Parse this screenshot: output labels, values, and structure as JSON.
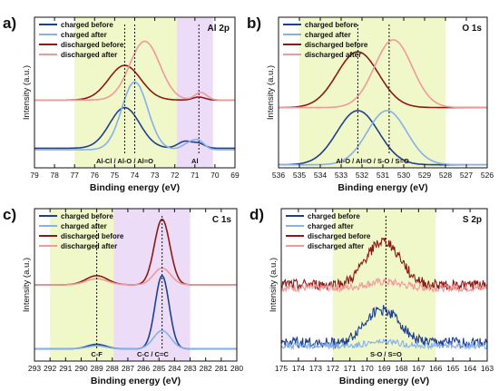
{
  "chart_data": [
    {
      "type": "line",
      "panel_label": "a)",
      "title": "Al 2p",
      "xlabel": "Binding energy (eV)",
      "ylabel": "Intensity (a.u.)",
      "xlim": [
        79,
        69
      ],
      "x_ticks": [
        79,
        78,
        77,
        76,
        75,
        74,
        73,
        72,
        71,
        70,
        69
      ],
      "y_ticks_shown": false,
      "legend_position": "top-left",
      "regions": [
        {
          "from": 77.0,
          "to": 71.9,
          "color": "#f0f7c8",
          "label": "Al-Cl / Al-O / Al=O",
          "label_at": 74.5
        },
        {
          "from": 71.9,
          "to": 70.1,
          "color": "#ecdcf7",
          "label": "Al",
          "label_at": 71.0
        }
      ],
      "dashed_lines": [
        74.5,
        74.0,
        70.8
      ],
      "series": [
        {
          "name": "charged before",
          "color": "#1f3f8f",
          "baseline": 0.13,
          "peaks": [
            [
              74.5,
              0.27,
              0.75
            ],
            [
              71.5,
              0.045,
              0.35
            ],
            [
              70.8,
              0.03,
              0.3
            ]
          ]
        },
        {
          "name": "charged after",
          "color": "#86b0ec",
          "baseline": 0.12,
          "peaks": [
            [
              74.0,
              0.45,
              0.65
            ],
            [
              71.3,
              0.04,
              0.35
            ],
            [
              70.8,
              0.05,
              0.3
            ]
          ]
        },
        {
          "name": "discharged before",
          "color": "#8b1a16",
          "baseline": 0.45,
          "peaks": [
            [
              74.5,
              0.23,
              0.8
            ],
            [
              70.8,
              0.02,
              0.3
            ]
          ]
        },
        {
          "name": "discharged after",
          "color": "#ef9a9a",
          "baseline": 0.45,
          "peaks": [
            [
              73.5,
              0.39,
              0.75
            ],
            [
              70.7,
              0.05,
              0.3
            ]
          ]
        }
      ]
    },
    {
      "type": "line",
      "panel_label": "b)",
      "title": "O 1s",
      "xlabel": "Binding energy (eV)",
      "ylabel": "Intensity (a.u.)",
      "xlim": [
        536,
        526
      ],
      "x_ticks": [
        536,
        535,
        534,
        533,
        532,
        531,
        530,
        529,
        528,
        527,
        526
      ],
      "y_ticks_shown": false,
      "legend_position": "top-left",
      "regions": [
        {
          "from": 535.0,
          "to": 528.0,
          "color": "#f0f7c8",
          "label": "Al-O / Al=O / S-O / S=O",
          "label_at": 531.5
        }
      ],
      "dashed_lines": [
        532.2,
        530.7
      ],
      "series": [
        {
          "name": "charged before",
          "color": "#1f3f8f",
          "baseline": 0.02,
          "peaks": [
            [
              532.2,
              0.36,
              1.0
            ]
          ]
        },
        {
          "name": "charged after",
          "color": "#86b0ec",
          "baseline": 0.02,
          "peaks": [
            [
              530.8,
              0.36,
              0.95
            ]
          ]
        },
        {
          "name": "discharged before",
          "color": "#8b1a16",
          "baseline": 0.4,
          "peaks": [
            [
              532.2,
              0.37,
              1.0
            ]
          ]
        },
        {
          "name": "discharged after",
          "color": "#ef9a9a",
          "baseline": 0.4,
          "peaks": [
            [
              530.5,
              0.45,
              0.9
            ]
          ]
        }
      ]
    },
    {
      "type": "line",
      "panel_label": "c)",
      "title": "C 1s",
      "xlabel": "Binding energy (eV)",
      "ylabel": "Intensity (a.u.)",
      "xlim": [
        293,
        280
      ],
      "x_ticks": [
        293,
        292,
        291,
        290,
        289,
        288,
        287,
        286,
        285,
        284,
        283,
        282,
        281,
        280
      ],
      "y_ticks_shown": false,
      "legend_position": "top-left",
      "regions": [
        {
          "from": 292.0,
          "to": 287.9,
          "color": "#f0f7c8",
          "label": "C-F",
          "label_at": 289.0
        },
        {
          "from": 287.9,
          "to": 283.0,
          "color": "#ecdcf7",
          "label": "C-C / C=C",
          "label_at": 285.4
        }
      ],
      "dashed_lines": [
        289.0,
        284.8
      ],
      "series": [
        {
          "name": "charged before",
          "color": "#1f3f8f",
          "baseline": 0.08,
          "peaks": [
            [
              284.8,
              0.48,
              0.45
            ],
            [
              289.0,
              0.03,
              0.6
            ]
          ]
        },
        {
          "name": "charged after",
          "color": "#86b0ec",
          "baseline": 0.08,
          "peaks": [
            [
              284.8,
              0.12,
              0.55
            ],
            [
              289.0,
              0.02,
              0.6
            ]
          ]
        },
        {
          "name": "discharged before",
          "color": "#8b1a16",
          "baseline": 0.5,
          "peaks": [
            [
              284.8,
              0.43,
              0.5
            ],
            [
              289.0,
              0.06,
              0.7
            ]
          ]
        },
        {
          "name": "discharged after",
          "color": "#ef9a9a",
          "baseline": 0.5,
          "peaks": [
            [
              284.8,
              0.11,
              0.55
            ],
            [
              289.0,
              0.04,
              0.7
            ]
          ]
        }
      ]
    },
    {
      "type": "line",
      "panel_label": "d)",
      "title": "S 2p",
      "xlabel": "Binding energy (eV)",
      "ylabel": "Intensity (a.u.)",
      "xlim": [
        175,
        163
      ],
      "x_ticks": [
        175,
        174,
        173,
        172,
        171,
        170,
        169,
        168,
        167,
        166,
        165,
        164,
        163
      ],
      "y_ticks_shown": false,
      "legend_position": "top-left",
      "regions": [
        {
          "from": 172.0,
          "to": 166.0,
          "color": "#f0f7c8",
          "label": "S-O / S=O",
          "label_at": 168.9
        }
      ],
      "dashed_lines": [
        168.9
      ],
      "series": [
        {
          "name": "charged before",
          "color": "#1f3f8f",
          "baseline": 0.12,
          "peaks": [
            [
              168.9,
              0.2,
              0.9
            ],
            [
              170.0,
              0.06,
              0.6
            ]
          ],
          "noise": 0.035
        },
        {
          "name": "charged after",
          "color": "#86b0ec",
          "baseline": 0.1,
          "peaks": [
            [
              169.0,
              0.025,
              1.0
            ]
          ],
          "noise": 0.02
        },
        {
          "name": "discharged before",
          "color": "#8b1a16",
          "baseline": 0.5,
          "peaks": [
            [
              168.9,
              0.27,
              0.9
            ],
            [
              170.0,
              0.06,
              0.6
            ]
          ],
          "noise": 0.035
        },
        {
          "name": "discharged after",
          "color": "#ef9a9a",
          "baseline": 0.48,
          "peaks": [
            [
              169.0,
              0.04,
              1.0
            ]
          ],
          "noise": 0.025
        }
      ]
    }
  ]
}
